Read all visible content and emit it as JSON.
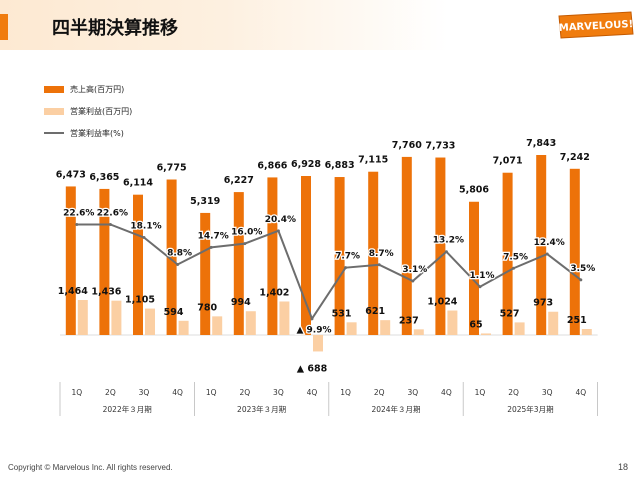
{
  "header": {
    "title": "四半期決算推移",
    "logo_text": "MARVELOUS!"
  },
  "legend": {
    "sales": "売上高(百万円)",
    "op_income": "営業利益(百万円)",
    "op_margin": "営業利益率(%)"
  },
  "footer": {
    "copyright": "Copyright © Marvelous Inc. All rights reserved.",
    "page": "18"
  },
  "colors": {
    "sales": "#ed7209",
    "op_income": "#fbcfa3",
    "op_margin": "#6d6d6d",
    "accent": "#f07c0e"
  },
  "chart_data": {
    "type": "bar",
    "categories": [
      "1Q",
      "2Q",
      "3Q",
      "4Q",
      "1Q",
      "2Q",
      "3Q",
      "4Q",
      "1Q",
      "2Q",
      "3Q",
      "4Q",
      "1Q",
      "2Q",
      "3Q",
      "4Q"
    ],
    "groups": [
      {
        "label": "2022年３月期"
      },
      {
        "label": "2023年３月期"
      },
      {
        "label": "2024年３月期"
      },
      {
        "label": "2025年3月期"
      }
    ],
    "series": [
      {
        "name": "売上高(百万円)",
        "type": "bar",
        "values": [
          6473,
          6365,
          6114,
          6775,
          5319,
          6227,
          6866,
          6928,
          6883,
          7115,
          7760,
          7733,
          5806,
          7071,
          7843,
          7242
        ],
        "labels": [
          "6,473",
          "6,365",
          "6,114",
          "6,775",
          "5,319",
          "6,227",
          "6,866",
          "6,928",
          "6,883",
          "7,115",
          "7,760",
          "7,733",
          "5,806",
          "7,071",
          "7,843",
          "7,242"
        ]
      },
      {
        "name": "営業利益(百万円)",
        "type": "bar",
        "values": [
          1464,
          1436,
          1105,
          594,
          780,
          994,
          1402,
          -688,
          531,
          621,
          237,
          1024,
          65,
          527,
          973,
          251
        ],
        "labels": [
          "1,464",
          "1,436",
          "1,105",
          "594",
          "780",
          "994",
          "1,402",
          "▲ 688",
          "531",
          "621",
          "237",
          "1,024",
          "65",
          "527",
          "973",
          "251"
        ]
      },
      {
        "name": "営業利益率(%)",
        "type": "line",
        "values": [
          22.6,
          22.6,
          18.1,
          8.8,
          14.7,
          16.0,
          20.4,
          -9.9,
          7.7,
          8.7,
          3.1,
          13.2,
          1.1,
          7.5,
          12.4,
          3.5
        ],
        "labels": [
          "22.6%",
          "22.6%",
          "18.1%",
          "8.8%",
          "14.7%",
          "16.0%",
          "20.4%",
          "▲ 9.9%",
          "7.7%",
          "8.7%",
          "3.1%",
          "13.2%",
          "1.1%",
          "7.5%",
          "12.4%",
          "3.5%"
        ]
      }
    ],
    "legend_position": "top-left",
    "grid": false
  }
}
